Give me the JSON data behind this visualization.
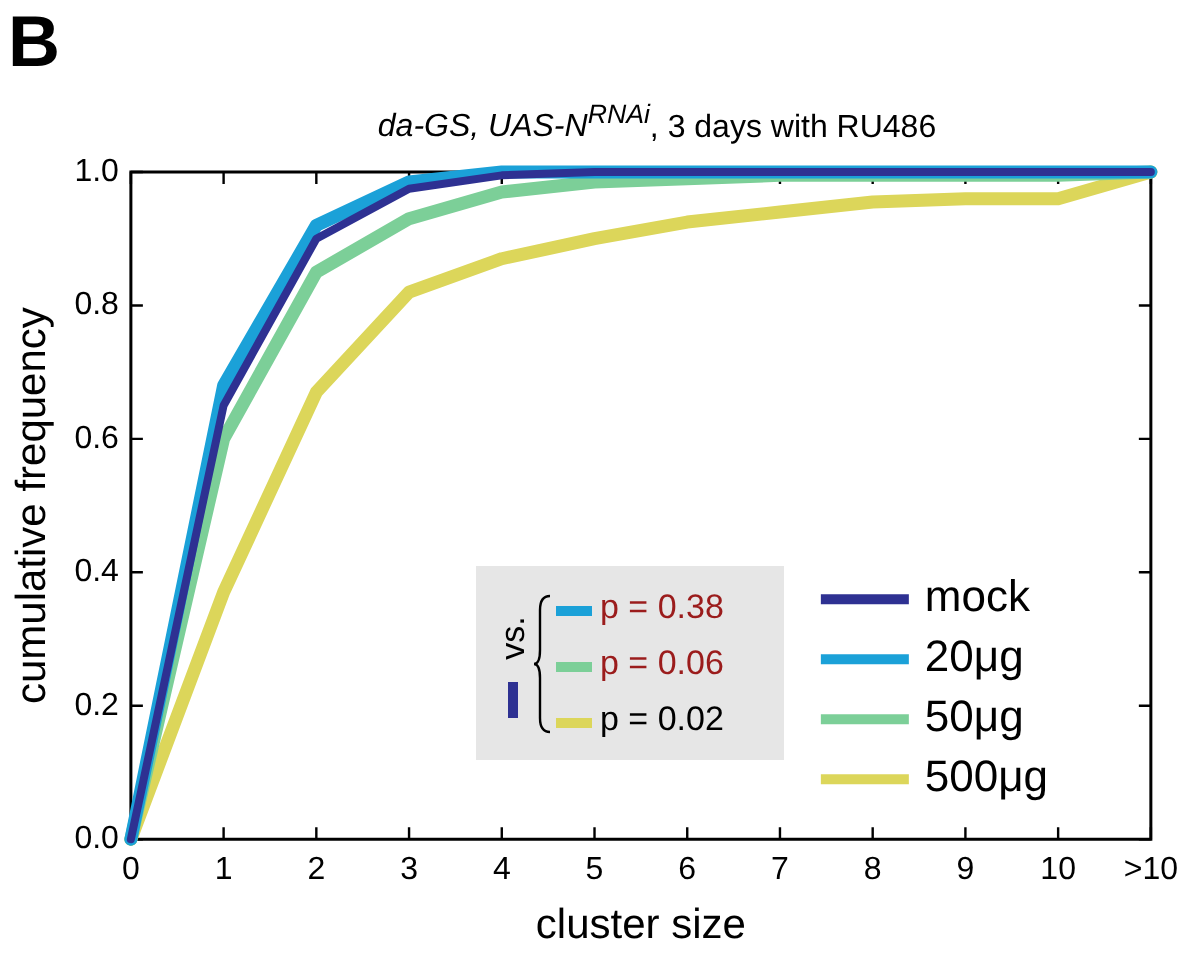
{
  "chart_data": {
    "type": "line",
    "title": "da-GS, UAS-N$^{RNAi}$, 3 days with RU486",
    "xlabel": "cluster size",
    "ylabel": "cumulative frequency",
    "categories": [
      "0",
      "1",
      "2",
      "3",
      "4",
      "5",
      "6",
      "7",
      "8",
      "9",
      "10",
      ">10"
    ],
    "series": [
      {
        "name": "mock",
        "color": "#2e3192",
        "values": [
          0,
          0.65,
          0.9,
          0.975,
          0.995,
          1,
          1,
          1,
          1,
          1,
          1,
          1
        ]
      },
      {
        "name": "20μg",
        "color": "#1ba1d8",
        "values": [
          0,
          0.68,
          0.92,
          0.985,
          1,
          1,
          1,
          1,
          1,
          1,
          1,
          1
        ]
      },
      {
        "name": "50μg",
        "color": "#7ccf98",
        "values": [
          0,
          0.6,
          0.85,
          0.93,
          0.97,
          0.985,
          0.99,
          0.995,
          0.995,
          0.995,
          0.995,
          1
        ]
      },
      {
        "name": "500μg",
        "color": "#dcd65a",
        "values": [
          0,
          0.37,
          0.67,
          0.82,
          0.87,
          0.9,
          0.925,
          0.94,
          0.955,
          0.96,
          0.96,
          1
        ]
      }
    ],
    "ylim": [
      0,
      1
    ],
    "yticks": [
      {
        "value": 0,
        "label": "0.0"
      },
      {
        "value": 0.2,
        "label": "0.2"
      },
      {
        "value": 0.4,
        "label": "0.4"
      },
      {
        "value": 0.6,
        "label": "0.6"
      },
      {
        "value": 0.8,
        "label": "0.8"
      },
      {
        "value": 1,
        "label": "1.0"
      }
    ],
    "grid": false,
    "legend": "bottom right",
    "marker": "none",
    "line_style": "solid",
    "annotations": [
      "B",
      "vs.",
      "p = 0.38",
      "p = 0.06",
      "p = 0.02"
    ]
  }
}
